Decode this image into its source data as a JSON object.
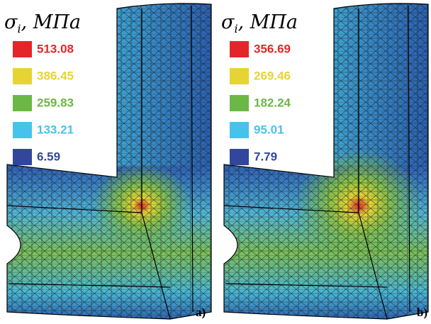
{
  "panels": [
    {
      "legend": {
        "symbol": "σ",
        "subscript": "i",
        "unit": ", МПа",
        "entries": [
          {
            "value": "513.08",
            "color": "#e3262a"
          },
          {
            "value": "386.45",
            "color": "#e6d434"
          },
          {
            "value": "259.83",
            "color": "#6cb846"
          },
          {
            "value": "133.21",
            "color": "#46c3ea"
          },
          {
            "value": "6.59",
            "color": "#30479c"
          }
        ]
      },
      "label": "a)"
    },
    {
      "legend": {
        "symbol": "σ",
        "subscript": "i",
        "unit": ", МПа",
        "entries": [
          {
            "value": "356.69",
            "color": "#e3262a"
          },
          {
            "value": "269.46",
            "color": "#e6d434"
          },
          {
            "value": "182.24",
            "color": "#6cb846"
          },
          {
            "value": "95.01",
            "color": "#46c3ea"
          },
          {
            "value": "7.79",
            "color": "#30479c"
          }
        ]
      },
      "label": "b)"
    }
  ]
}
